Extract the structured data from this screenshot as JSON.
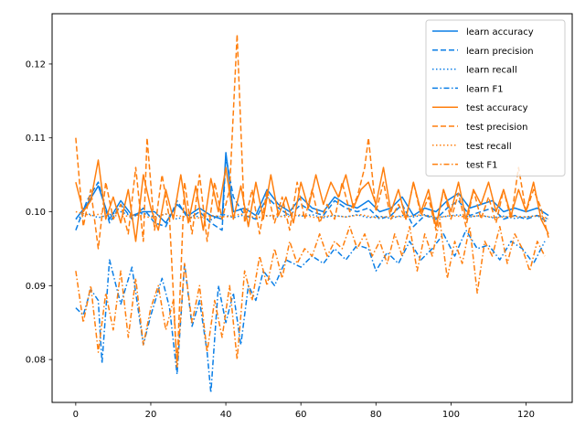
{
  "chart_data": {
    "type": "line",
    "title": "",
    "xlabel": "",
    "ylabel": "",
    "xlim": [
      -6.3,
      132.3
    ],
    "ylim": [
      0.0742,
      0.1268
    ],
    "xticks": [
      0,
      20,
      40,
      60,
      80,
      100,
      120
    ],
    "yticks": [
      0.08,
      0.09,
      0.1,
      0.11,
      0.12
    ],
    "ytick_labels": [
      "0.08",
      "0.09",
      "0.10",
      "0.11",
      "0.12"
    ],
    "grid": false,
    "legend_position": "upper right",
    "colors": {
      "learn": "#0a7ee6",
      "test": "#ff7f0e"
    },
    "series": [
      {
        "name": "learn accuracy",
        "color": "#0a7ee6",
        "dash": "solid",
        "x": [
          0,
          3,
          6,
          9,
          12,
          15,
          18,
          21,
          24,
          27,
          30,
          33,
          36,
          39,
          40,
          42,
          45,
          48,
          51,
          54,
          57,
          60,
          63,
          66,
          69,
          72,
          75,
          78,
          81,
          84,
          87,
          90,
          93,
          96,
          99,
          102,
          105,
          108,
          111,
          114,
          117,
          120,
          123,
          126
        ],
        "y": [
          0.099,
          0.101,
          0.1035,
          0.099,
          0.1015,
          0.0995,
          0.1,
          0.1,
          0.0985,
          0.101,
          0.0995,
          0.1005,
          0.0995,
          0.099,
          0.108,
          0.1,
          0.1005,
          0.0995,
          0.103,
          0.101,
          0.1,
          0.102,
          0.1005,
          0.1,
          0.102,
          0.101,
          0.1005,
          0.1015,
          0.1,
          0.1005,
          0.102,
          0.0995,
          0.1005,
          0.1,
          0.1015,
          0.1025,
          0.1005,
          0.101,
          0.1015,
          0.1,
          0.1005,
          0.1,
          0.1005,
          0.0995
        ]
      },
      {
        "name": "learn precision",
        "color": "#0a7ee6",
        "dash": "dashed",
        "x": [
          0,
          3,
          6,
          9,
          12,
          15,
          18,
          21,
          24,
          27,
          30,
          33,
          36,
          39,
          40,
          42,
          45,
          48,
          51,
          54,
          57,
          60,
          63,
          66,
          69,
          72,
          75,
          78,
          81,
          84,
          87,
          90,
          93,
          96,
          99,
          102,
          105,
          108,
          111,
          114,
          117,
          120,
          123,
          126
        ],
        "y": [
          0.0975,
          0.1015,
          0.104,
          0.0985,
          0.101,
          0.099,
          0.1005,
          0.0985,
          0.098,
          0.1015,
          0.099,
          0.1,
          0.0985,
          0.0975,
          0.1075,
          0.102,
          0.0995,
          0.099,
          0.102,
          0.1005,
          0.0995,
          0.101,
          0.1,
          0.0995,
          0.1015,
          0.1005,
          0.1,
          0.1005,
          0.099,
          0.0995,
          0.101,
          0.098,
          0.0995,
          0.099,
          0.1005,
          0.1015,
          0.0995,
          0.1,
          0.1005,
          0.099,
          0.0995,
          0.099,
          0.0995,
          0.0985
        ]
      },
      {
        "name": "learn recall",
        "color": "#0a7ee6",
        "dash": "dotted",
        "x": [
          0,
          3,
          6,
          9,
          12,
          15,
          18,
          21,
          24,
          27,
          30,
          33,
          36,
          39,
          42,
          45,
          48,
          51,
          54,
          57,
          60,
          63,
          66,
          69,
          72,
          75,
          78,
          81,
          84,
          87,
          90,
          93,
          96,
          99,
          102,
          105,
          108,
          111,
          114,
          117,
          120,
          123,
          126
        ],
        "y": [
          0.099,
          0.0998,
          0.0992,
          0.0996,
          0.1,
          0.0994,
          0.0998,
          0.0993,
          0.0997,
          0.099,
          0.0996,
          0.0993,
          0.0989,
          0.0997,
          0.0992,
          0.0996,
          0.0991,
          0.0995,
          0.0993,
          0.0997,
          0.0994,
          0.0996,
          0.0992,
          0.0995,
          0.0993,
          0.0996,
          0.0992,
          0.0994,
          0.0991,
          0.0995,
          0.0993,
          0.0996,
          0.0992,
          0.0994,
          0.0996,
          0.0993,
          0.0995,
          0.0992,
          0.0994,
          0.0991,
          0.0993,
          0.0995,
          0.099
        ]
      },
      {
        "name": "learn F1",
        "color": "#0a7ee6",
        "dash": "dashdot",
        "x": [
          0,
          2,
          4,
          6,
          7,
          9,
          12,
          15,
          18,
          20,
          23,
          25,
          27,
          29,
          31,
          33,
          35,
          36,
          38,
          40,
          42,
          44,
          46,
          48,
          50,
          53,
          56,
          60,
          63,
          66,
          69,
          72,
          75,
          78,
          80,
          83,
          86,
          89,
          92,
          95,
          98,
          101,
          104,
          107,
          110,
          113,
          116,
          119,
          122,
          125
        ],
        "y": [
          0.087,
          0.086,
          0.0895,
          0.088,
          0.0795,
          0.0935,
          0.0875,
          0.0925,
          0.082,
          0.086,
          0.091,
          0.087,
          0.078,
          0.093,
          0.0845,
          0.088,
          0.081,
          0.0755,
          0.09,
          0.085,
          0.089,
          0.082,
          0.09,
          0.088,
          0.092,
          0.09,
          0.0935,
          0.0925,
          0.094,
          0.093,
          0.095,
          0.0935,
          0.0955,
          0.095,
          0.092,
          0.0945,
          0.093,
          0.096,
          0.0935,
          0.095,
          0.097,
          0.094,
          0.0975,
          0.095,
          0.0955,
          0.0935,
          0.096,
          0.095,
          0.093,
          0.096
        ]
      },
      {
        "name": "test accuracy",
        "color": "#ff7f0e",
        "dash": "solid",
        "x": [
          0,
          2,
          4,
          6,
          8,
          10,
          12,
          14,
          16,
          18,
          20,
          22,
          24,
          26,
          28,
          30,
          32,
          34,
          36,
          38,
          40,
          42,
          44,
          46,
          48,
          50,
          52,
          54,
          56,
          58,
          60,
          62,
          64,
          66,
          68,
          70,
          72,
          74,
          76,
          78,
          80,
          82,
          84,
          86,
          88,
          90,
          92,
          94,
          96,
          98,
          100,
          102,
          104,
          106,
          108,
          110,
          112,
          114,
          116,
          118,
          120,
          122,
          124,
          126
        ],
        "y": [
          0.104,
          0.1,
          0.1015,
          0.107,
          0.099,
          0.102,
          0.0985,
          0.103,
          0.096,
          0.105,
          0.1005,
          0.0975,
          0.103,
          0.099,
          0.105,
          0.0985,
          0.1035,
          0.0975,
          0.1045,
          0.1,
          0.106,
          0.099,
          0.1035,
          0.098,
          0.104,
          0.099,
          0.105,
          0.0995,
          0.102,
          0.0985,
          0.104,
          0.1005,
          0.105,
          0.101,
          0.104,
          0.102,
          0.105,
          0.1005,
          0.103,
          0.104,
          0.101,
          0.106,
          0.1,
          0.103,
          0.099,
          0.104,
          0.1,
          0.103,
          0.098,
          0.103,
          0.1,
          0.104,
          0.099,
          0.103,
          0.101,
          0.104,
          0.1,
          0.103,
          0.0995,
          0.103,
          0.1,
          0.104,
          0.099,
          0.097
        ]
      },
      {
        "name": "test precision",
        "color": "#ff7f0e",
        "dash": "dashed",
        "x": [
          0,
          2,
          4,
          6,
          8,
          10,
          12,
          14,
          16,
          18,
          19,
          21,
          23,
          25,
          27,
          29,
          31,
          33,
          35,
          37,
          39,
          41,
          43,
          45,
          47,
          49,
          51,
          53,
          55,
          57,
          59,
          61,
          63,
          65,
          67,
          69,
          71,
          73,
          75,
          77,
          78,
          80,
          82,
          84,
          86,
          88,
          90,
          92,
          94,
          96,
          98,
          100,
          102,
          104,
          106,
          108,
          110,
          112,
          114,
          116,
          118,
          120,
          122,
          124,
          126
        ],
        "y": [
          0.11,
          0.098,
          0.103,
          0.095,
          0.104,
          0.099,
          0.101,
          0.097,
          0.106,
          0.096,
          0.11,
          0.0975,
          0.105,
          0.099,
          0.079,
          0.104,
          0.097,
          0.105,
          0.096,
          0.104,
          0.099,
          0.103,
          0.124,
          0.0985,
          0.103,
          0.097,
          0.103,
          0.0985,
          0.102,
          0.0975,
          0.104,
          0.099,
          0.103,
          0.0985,
          0.101,
          0.099,
          0.104,
          0.1,
          0.102,
          0.106,
          0.11,
          0.1,
          0.104,
          0.099,
          0.101,
          0.099,
          0.104,
          0.0995,
          0.102,
          0.0975,
          0.103,
          0.099,
          0.1025,
          0.098,
          0.103,
          0.099,
          0.102,
          0.0985,
          0.103,
          0.099,
          0.106,
          0.1,
          0.103,
          0.1005,
          0.0965
        ]
      },
      {
        "name": "test recall",
        "color": "#ff7f0e",
        "dash": "dotted",
        "x": [
          0,
          4,
          8,
          12,
          16,
          20,
          24,
          28,
          32,
          36,
          40,
          44,
          48,
          52,
          56,
          60,
          64,
          68,
          72,
          76,
          80,
          84,
          88,
          92,
          96,
          100,
          104,
          108,
          112,
          116,
          120,
          124,
          126
        ],
        "y": [
          0.1,
          0.0995,
          0.0998,
          0.0993,
          0.0996,
          0.0992,
          0.0997,
          0.0994,
          0.0991,
          0.0995,
          0.0993,
          0.0997,
          0.0992,
          0.0995,
          0.0993,
          0.0996,
          0.0992,
          0.0995,
          0.0993,
          0.0996,
          0.0992,
          0.0994,
          0.0993,
          0.0996,
          0.0992,
          0.0995,
          0.0993,
          0.0995,
          0.0992,
          0.0994,
          0.0993,
          0.0995,
          0.099
        ]
      },
      {
        "name": "test F1",
        "color": "#ff7f0e",
        "dash": "dashdot",
        "x": [
          0,
          2,
          4,
          6,
          8,
          10,
          12,
          14,
          16,
          18,
          20,
          22,
          24,
          26,
          27,
          29,
          31,
          33,
          35,
          37,
          39,
          41,
          43,
          45,
          47,
          49,
          51,
          53,
          55,
          57,
          59,
          61,
          63,
          65,
          67,
          69,
          71,
          73,
          75,
          77,
          79,
          81,
          83,
          85,
          87,
          89,
          91,
          93,
          95,
          97,
          99,
          101,
          103,
          105,
          107,
          109,
          111,
          113,
          115,
          117,
          119,
          121,
          123,
          125
        ],
        "y": [
          0.092,
          0.085,
          0.09,
          0.081,
          0.089,
          0.084,
          0.092,
          0.083,
          0.091,
          0.082,
          0.087,
          0.09,
          0.084,
          0.088,
          0.079,
          0.093,
          0.085,
          0.09,
          0.081,
          0.088,
          0.083,
          0.09,
          0.08,
          0.092,
          0.088,
          0.094,
          0.09,
          0.095,
          0.091,
          0.096,
          0.093,
          0.095,
          0.094,
          0.097,
          0.094,
          0.096,
          0.095,
          0.098,
          0.095,
          0.097,
          0.094,
          0.096,
          0.093,
          0.097,
          0.094,
          0.098,
          0.092,
          0.097,
          0.094,
          0.099,
          0.091,
          0.096,
          0.093,
          0.098,
          0.089,
          0.096,
          0.094,
          0.098,
          0.093,
          0.097,
          0.095,
          0.092,
          0.096,
          0.094
        ]
      }
    ]
  }
}
